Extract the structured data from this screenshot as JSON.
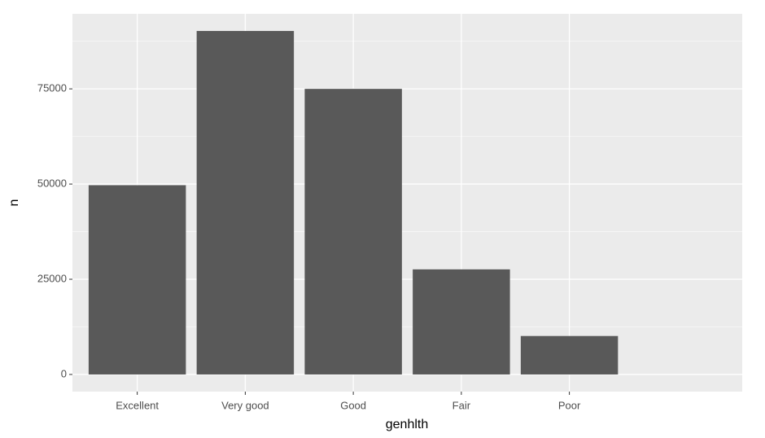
{
  "chart_data": {
    "type": "bar",
    "x_label": "genhlth",
    "y_label": "n",
    "categories": [
      "Excellent",
      "Very good",
      "Good",
      "Fair",
      "Poor"
    ],
    "values": [
      49700,
      90200,
      75000,
      27600,
      10100
    ],
    "color": "#595959",
    "ylim": [
      -4500,
      94700
    ],
    "yticks": [
      0,
      25000,
      50000,
      75000
    ],
    "minor_yticks": [
      12500,
      37500,
      62500,
      87500
    ],
    "grid": true
  }
}
